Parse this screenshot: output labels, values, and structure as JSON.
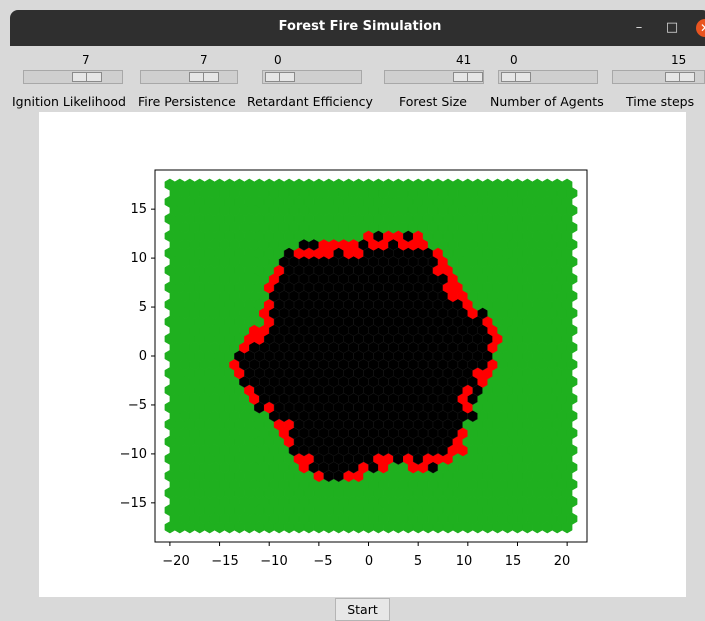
{
  "window": {
    "title": "Forest Fire Simulation",
    "min": "–",
    "max": "□",
    "close": "✕"
  },
  "sliders": [
    {
      "label": "Ignition Likelihood",
      "value": "7"
    },
    {
      "label": "Fire Persistence",
      "value": "7"
    },
    {
      "label": "Retardant Efficiency",
      "value": "0"
    },
    {
      "label": "Forest Size",
      "value": "41"
    },
    {
      "label": "Number of Agents",
      "value": "0"
    },
    {
      "label": "Time steps",
      "value": "15"
    }
  ],
  "start_label": "Start",
  "colors": {
    "tree": "#1fb01f",
    "burning": "#ff0000",
    "burnt": "#000000"
  },
  "chart_data": {
    "type": "hexbin",
    "xlim": [
      -21.5,
      22
    ],
    "ylim": [
      -19,
      19
    ],
    "x_ticks": [
      "−20",
      "−15",
      "−10",
      "−5",
      "0",
      "5",
      "10",
      "15",
      "20"
    ],
    "y_ticks": [
      "15",
      "10",
      "5",
      "0",
      "−5",
      "−10",
      "−15"
    ],
    "grid": false
  }
}
